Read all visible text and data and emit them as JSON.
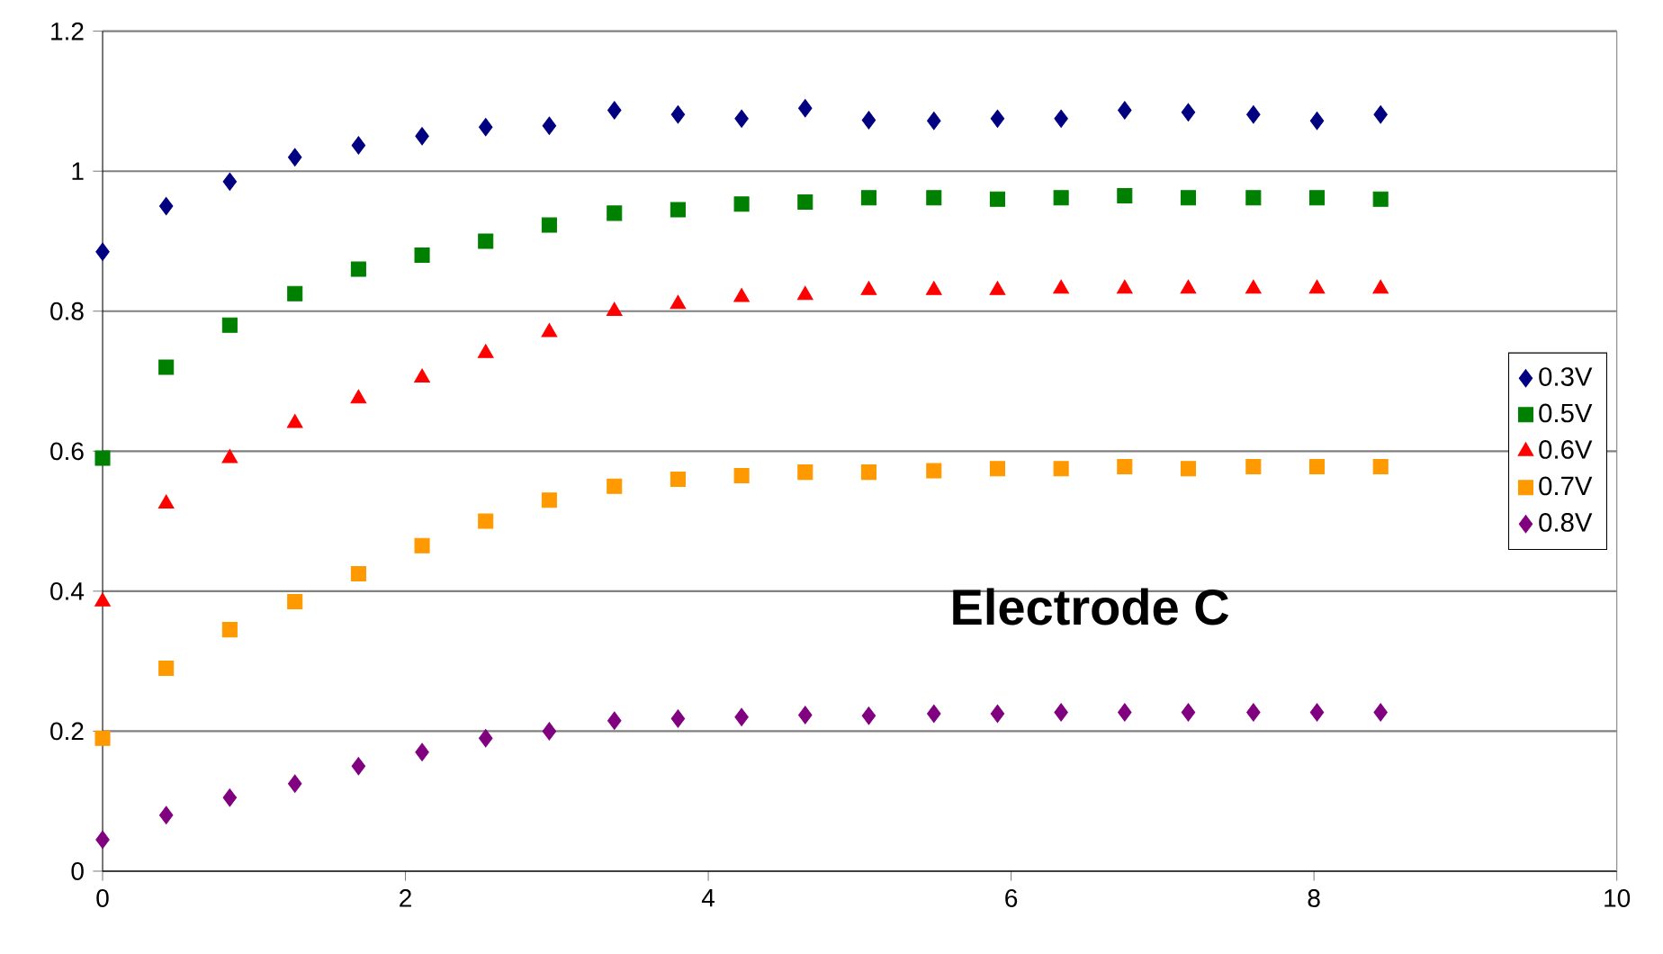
{
  "chart_data": {
    "type": "scatter",
    "annotations": [
      "Electrode C"
    ],
    "x": [
      0,
      0.42,
      0.84,
      1.27,
      1.69,
      2.11,
      2.53,
      2.95,
      3.38,
      3.8,
      4.22,
      4.64,
      5.06,
      5.49,
      5.91,
      6.33,
      6.75,
      7.17,
      7.6,
      8.02,
      8.44
    ],
    "series": [
      {
        "name": "0.3V",
        "color": "#000080",
        "marker": "diamond",
        "values": [
          0.885,
          0.95,
          0.985,
          1.02,
          1.037,
          1.05,
          1.063,
          1.065,
          1.087,
          1.081,
          1.075,
          1.09,
          1.073,
          1.072,
          1.075,
          1.075,
          1.087,
          1.084,
          1.081,
          1.072,
          1.081
        ]
      },
      {
        "name": "0.5V",
        "color": "#008000",
        "marker": "square",
        "values": [
          0.59,
          0.72,
          0.78,
          0.825,
          0.86,
          0.88,
          0.9,
          0.923,
          0.94,
          0.945,
          0.953,
          0.956,
          0.962,
          0.962,
          0.96,
          0.962,
          0.965,
          0.962,
          0.962,
          0.962,
          0.96
        ]
      },
      {
        "name": "0.6V",
        "color": "#ff0000",
        "marker": "triangle",
        "values": [
          0.385,
          0.525,
          0.59,
          0.64,
          0.675,
          0.705,
          0.74,
          0.77,
          0.8,
          0.81,
          0.82,
          0.823,
          0.83,
          0.83,
          0.83,
          0.832,
          0.832,
          0.832,
          0.832,
          0.832,
          0.832
        ]
      },
      {
        "name": "0.7V",
        "color": "#ff9900",
        "marker": "square",
        "values": [
          0.19,
          0.29,
          0.345,
          0.385,
          0.425,
          0.465,
          0.5,
          0.53,
          0.55,
          0.56,
          0.565,
          0.57,
          0.57,
          0.572,
          0.575,
          0.575,
          0.578,
          0.575,
          0.578,
          0.578,
          0.578
        ]
      },
      {
        "name": "0.8V",
        "color": "#800080",
        "marker": "diamond",
        "values": [
          0.045,
          0.08,
          0.105,
          0.125,
          0.15,
          0.17,
          0.19,
          0.2,
          0.215,
          0.218,
          0.22,
          0.223,
          0.222,
          0.225,
          0.225,
          0.227,
          0.227,
          0.227,
          0.227,
          0.227,
          0.227
        ]
      }
    ],
    "xlim": [
      0,
      10
    ],
    "xticks": [
      0,
      2,
      4,
      6,
      8,
      10
    ],
    "ylim": [
      0,
      1.2
    ],
    "yticks": [
      0,
      0.2,
      0.4,
      0.6,
      0.8,
      1,
      1.2
    ],
    "grid": "y",
    "legend": "right"
  }
}
